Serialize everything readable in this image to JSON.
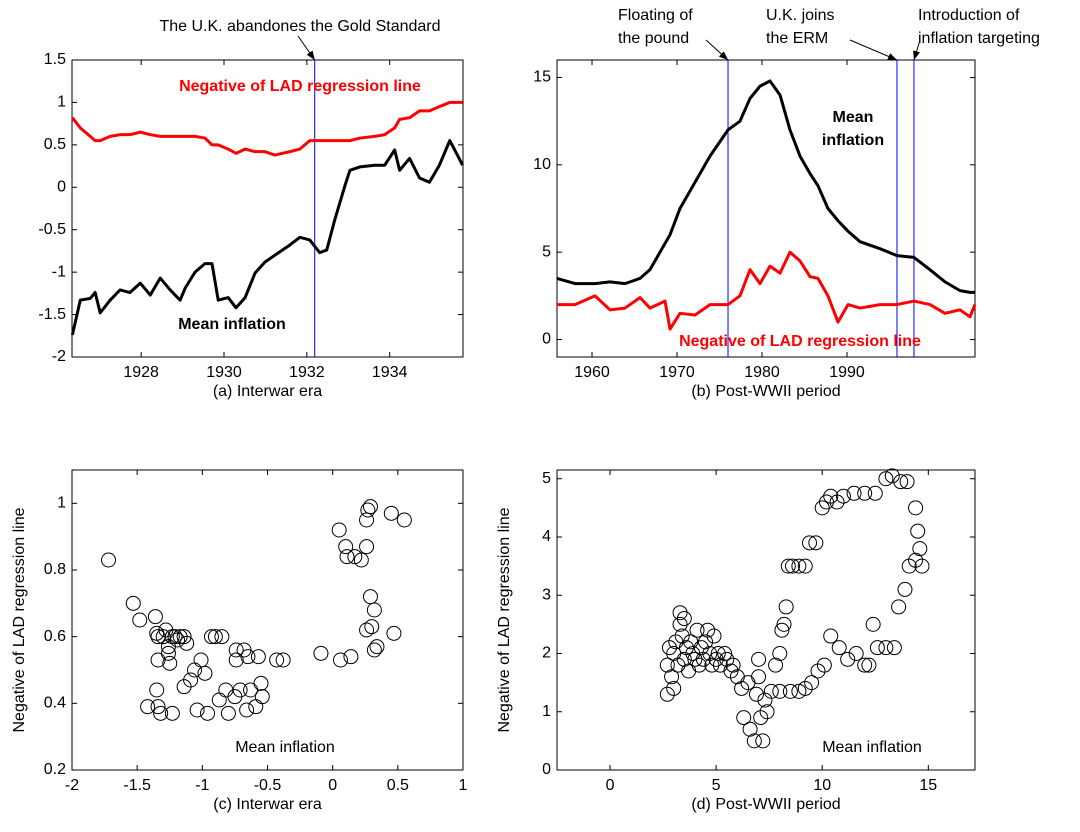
{
  "chart_data": [
    {
      "type": "line",
      "caption": "(a) Interwar era",
      "x": [
        1926.34,
        1926.53,
        1926.77,
        1926.89,
        1927.01,
        1927.25,
        1927.49,
        1927.73,
        1927.98,
        1928.22,
        1928.46,
        1928.7,
        1928.94,
        1929.06,
        1929.3,
        1929.54,
        1929.71,
        1929.86,
        1930.1,
        1930.29,
        1930.51,
        1930.75,
        1930.99,
        1931.23,
        1931.59,
        1931.83,
        1932.07,
        1932.31,
        1932.48,
        1932.67,
        1932.92,
        1933.04,
        1933.28,
        1933.64,
        1933.88,
        1934.12,
        1934.24,
        1934.48,
        1934.72,
        1934.96,
        1935.2,
        1935.45,
        1935.57,
        1935.76
      ],
      "series": [
        {
          "name": "Negative of LAD regression line",
          "color": "#ff0000",
          "values": [
            0.82,
            0.7,
            0.6,
            0.55,
            0.55,
            0.6,
            0.62,
            0.62,
            0.65,
            0.62,
            0.6,
            0.6,
            0.6,
            0.6,
            0.6,
            0.58,
            0.5,
            0.5,
            0.45,
            0.4,
            0.45,
            0.42,
            0.42,
            0.38,
            0.42,
            0.45,
            0.55,
            0.55,
            0.55,
            0.55,
            0.55,
            0.55,
            0.58,
            0.6,
            0.62,
            0.7,
            0.8,
            0.82,
            0.9,
            0.9,
            0.95,
            1.0,
            1.0,
            1.0
          ]
        },
        {
          "name": "Mean inflation",
          "color": "#000000",
          "values": [
            -1.74,
            -1.33,
            -1.31,
            -1.24,
            -1.48,
            -1.33,
            -1.21,
            -1.24,
            -1.13,
            -1.27,
            -1.07,
            -1.21,
            -1.33,
            -1.19,
            -1.0,
            -0.9,
            -0.9,
            -1.33,
            -1.3,
            -1.42,
            -1.3,
            -1.01,
            -0.88,
            -0.8,
            -0.68,
            -0.59,
            -0.62,
            -0.77,
            -0.74,
            -0.39,
            0.02,
            0.2,
            0.24,
            0.26,
            0.26,
            0.44,
            0.2,
            0.34,
            0.11,
            0.06,
            0.26,
            0.55,
            0.44,
            0.26
          ]
        }
      ],
      "xlim": [
        1926.33,
        1935.77
      ],
      "xticks": [
        1928,
        1930,
        1932,
        1934
      ],
      "ylim": [
        -2,
        1.5
      ],
      "yticks": [
        -2,
        -1.5,
        -1,
        -0.5,
        0,
        0.5,
        1,
        1.5
      ],
      "vlines": [
        {
          "x": 1932.19,
          "label": "The U.K. abandones the Gold Standard",
          "color": "#0000ff"
        }
      ]
    },
    {
      "type": "line",
      "caption": "(b) Post-WWII period",
      "x": [
        1955.88,
        1958.0,
        1960.35,
        1962.12,
        1963.88,
        1965.65,
        1966.82,
        1968.59,
        1969.18,
        1970.35,
        1972.12,
        1973.88,
        1976.0,
        1977.41,
        1978.59,
        1979.76,
        1980.94,
        1982.12,
        1983.29,
        1984.47,
        1985.65,
        1986.59,
        1987.76,
        1988.94,
        1990.12,
        1991.53,
        1993.88,
        1995.88,
        1997.88,
        1999.76,
        2001.53,
        2003.29,
        2004.47,
        2005.06
      ],
      "series": [
        {
          "name": "Negative of LAD regression line",
          "color": "#ff0000",
          "values": [
            2.0,
            2.0,
            2.5,
            1.7,
            1.8,
            2.4,
            1.8,
            2.2,
            0.6,
            1.5,
            1.4,
            2.0,
            2.0,
            2.5,
            4.0,
            3.2,
            4.2,
            3.8,
            5.0,
            4.5,
            3.6,
            3.5,
            2.5,
            1.0,
            2.0,
            1.8,
            2.0,
            2.0,
            2.2,
            2.0,
            1.5,
            1.7,
            1.3,
            2.0
          ]
        },
        {
          "name": "Mean inflation",
          "color": "#000000",
          "values": [
            3.5,
            3.2,
            3.2,
            3.3,
            3.2,
            3.5,
            4.0,
            5.5,
            6.0,
            7.5,
            9.0,
            10.5,
            12.0,
            12.5,
            13.8,
            14.5,
            14.8,
            14.0,
            12.0,
            10.5,
            9.5,
            8.8,
            7.5,
            6.8,
            6.2,
            5.6,
            5.2,
            4.8,
            4.7,
            4.0,
            3.3,
            2.8,
            2.7,
            2.7
          ]
        }
      ],
      "xlim": [
        1955.88,
        2005.06
      ],
      "xticks": [
        1960,
        1970,
        1980,
        1990
      ],
      "ylim": [
        -1,
        16
      ],
      "yticks": [
        0,
        5,
        10,
        15
      ],
      "vlines": [
        {
          "x": 1976.0,
          "label": "Floating of the pound",
          "color": "#0000ff"
        },
        {
          "x": 1995.88,
          "label": "U.K. joins the ERM",
          "color": "#0000ff"
        },
        {
          "x": 1997.88,
          "label": "Introduction of inflation targeting",
          "color": "#0000ff"
        }
      ]
    },
    {
      "type": "scatter",
      "caption": "(c) Interwar era",
      "xlabel": "Mean inflation",
      "ylabel": "Negative of LAD regression line",
      "color": "#000000",
      "x": [
        -1.72,
        -1.53,
        -1.48,
        -1.42,
        -1.36,
        -1.35,
        -1.34,
        -1.34,
        -1.35,
        -1.34,
        -1.32,
        -1.3,
        -1.28,
        -1.26,
        -1.26,
        -1.25,
        -1.23,
        -1.23,
        -1.21,
        -1.19,
        -1.17,
        -1.14,
        -1.14,
        -1.12,
        -1.09,
        -1.06,
        -1.04,
        -1.01,
        -0.98,
        -0.96,
        -0.93,
        -0.9,
        -0.87,
        -0.85,
        -0.82,
        -0.8,
        -0.75,
        -0.74,
        -0.74,
        -0.71,
        -0.68,
        -0.66,
        -0.65,
        -0.63,
        -0.59,
        -0.57,
        -0.55,
        -0.54,
        -0.43,
        -0.38,
        -0.09,
        0.06,
        0.14,
        0.05,
        0.1,
        0.11,
        0.17,
        0.22,
        0.26,
        0.27,
        0.29,
        0.26,
        0.29,
        0.26,
        0.3,
        0.32,
        0.32,
        0.34,
        0.45,
        0.47,
        0.55
      ],
      "values": [
        0.83,
        0.7,
        0.65,
        0.39,
        0.66,
        0.61,
        0.6,
        0.53,
        0.44,
        0.39,
        0.37,
        0.6,
        0.62,
        0.57,
        0.55,
        0.52,
        0.6,
        0.37,
        0.6,
        0.59,
        0.6,
        0.45,
        0.6,
        0.58,
        0.47,
        0.5,
        0.38,
        0.53,
        0.49,
        0.37,
        0.6,
        0.6,
        0.41,
        0.6,
        0.44,
        0.37,
        0.42,
        0.56,
        0.53,
        0.44,
        0.56,
        0.38,
        0.54,
        0.44,
        0.39,
        0.54,
        0.46,
        0.42,
        0.53,
        0.53,
        0.55,
        0.53,
        0.54,
        0.92,
        0.87,
        0.84,
        0.84,
        0.83,
        0.87,
        0.98,
        0.99,
        0.95,
        0.72,
        0.62,
        0.63,
        0.68,
        0.56,
        0.57,
        0.97,
        0.61,
        0.95
      ],
      "xlim": [
        -2,
        1
      ],
      "xticks": [
        -2,
        -1.5,
        -1,
        -0.5,
        0,
        0.5,
        1
      ],
      "ylim": [
        0.2,
        1.1
      ],
      "yticks": [
        0.2,
        0.4,
        0.6,
        0.8,
        1
      ]
    },
    {
      "type": "scatter",
      "caption": "(d) Post-WWII period",
      "xlabel": "Mean inflation",
      "ylabel": "Negative of LAD regression line",
      "color": "#000000",
      "x": [
        2.7,
        2.7,
        2.8,
        2.9,
        3.0,
        3.0,
        3.1,
        3.2,
        3.3,
        3.3,
        3.4,
        3.5,
        3.5,
        3.6,
        3.7,
        3.8,
        3.9,
        4.0,
        4.1,
        4.2,
        4.3,
        4.4,
        4.5,
        4.6,
        4.7,
        4.8,
        4.9,
        5.0,
        5.1,
        5.2,
        5.4,
        5.5,
        5.7,
        5.8,
        6.0,
        6.2,
        6.3,
        6.5,
        6.6,
        6.8,
        6.9,
        7.0,
        7.1,
        7.2,
        7.3,
        7.4,
        7.8,
        8.0,
        8.1,
        8.2,
        8.3,
        8.4,
        8.6,
        8.9,
        9.2,
        9.4,
        9.7,
        10.0,
        10.2,
        10.4,
        10.7,
        11.0,
        11.5,
        12.0,
        12.5,
        13.0,
        13.3,
        13.7,
        14.0,
        14.4,
        14.5,
        14.6,
        14.7,
        14.4,
        14.1,
        13.9,
        13.6,
        13.4,
        13.0,
        12.6,
        12.4,
        12.2,
        12.0,
        11.6,
        11.2,
        10.8,
        10.4,
        10.1,
        9.8,
        9.5,
        9.2,
        8.9,
        8.5,
        8.0,
        7.6,
        7.0
      ],
      "values": [
        1.3,
        1.8,
        2.1,
        1.6,
        2.0,
        1.4,
        2.2,
        1.8,
        2.5,
        2.7,
        2.3,
        2.6,
        1.9,
        2.1,
        1.7,
        2.2,
        2.0,
        1.9,
        2.4,
        1.8,
        2.1,
        1.9,
        2.2,
        2.4,
        2.0,
        1.8,
        2.3,
        1.9,
        2.0,
        1.8,
        2.0,
        1.9,
        1.7,
        1.8,
        1.6,
        1.4,
        0.9,
        1.5,
        0.7,
        0.5,
        1.3,
        1.9,
        0.9,
        0.5,
        1.2,
        1.0,
        1.8,
        2.0,
        2.4,
        2.5,
        2.8,
        3.5,
        3.5,
        3.5,
        3.5,
        3.9,
        3.9,
        4.5,
        4.6,
        4.7,
        4.6,
        4.7,
        4.75,
        4.75,
        4.75,
        5.0,
        5.05,
        4.95,
        4.95,
        4.5,
        4.1,
        3.8,
        3.5,
        3.6,
        3.5,
        3.1,
        2.8,
        2.1,
        2.1,
        2.1,
        2.5,
        1.8,
        1.8,
        2.0,
        1.9,
        2.1,
        2.3,
        1.8,
        1.7,
        1.5,
        1.4,
        1.35,
        1.35,
        1.35,
        1.35,
        1.6
      ],
      "xlim": [
        -2.5,
        17.2
      ],
      "xticks": [
        0,
        5,
        10,
        15
      ],
      "ylim": [
        0,
        5.15
      ],
      "yticks": [
        0,
        1,
        2,
        3,
        4,
        5
      ]
    }
  ]
}
